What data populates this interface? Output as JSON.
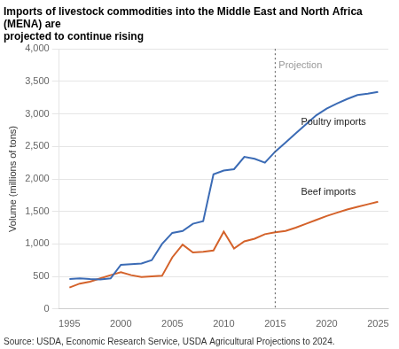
{
  "chart_data": {
    "type": "line",
    "title": [
      "Imports of livestock commodities into the Middle East and North Africa (MENA) are",
      "projected to continue rising"
    ],
    "ylabel": "Volume (millions of tons)",
    "source": "Source: USDA, Economic Research Service, USDA Agricultural Projections to 2024.",
    "x": [
      1995,
      1996,
      1997,
      1998,
      1999,
      2000,
      2001,
      2002,
      2003,
      2004,
      2005,
      2006,
      2007,
      2008,
      2009,
      2010,
      2011,
      2012,
      2013,
      2014,
      2015,
      2016,
      2017,
      2018,
      2019,
      2020,
      2021,
      2022,
      2023,
      2024,
      2025
    ],
    "series": [
      {
        "name": "Poultry imports",
        "color": "#3b6bb5",
        "values": [
          460,
          470,
          460,
          455,
          470,
          680,
          690,
          700,
          750,
          1000,
          1170,
          1200,
          1310,
          1350,
          2070,
          2130,
          2150,
          2340,
          2310,
          2250,
          2420,
          2560,
          2700,
          2840,
          2980,
          3080,
          3160,
          3230,
          3290,
          3310,
          3340
        ]
      },
      {
        "name": "Beef imports",
        "color": "#d4622a",
        "values": [
          330,
          390,
          420,
          470,
          520,
          565,
          520,
          490,
          500,
          510,
          795,
          990,
          870,
          880,
          900,
          1190,
          930,
          1040,
          1080,
          1150,
          1180,
          1200,
          1250,
          1310,
          1370,
          1430,
          1480,
          1530,
          1570,
          1610,
          1650
        ]
      }
    ],
    "xlim": [
      1994,
      2026
    ],
    "xticks": [
      1995,
      2000,
      2005,
      2010,
      2015,
      2020,
      2025
    ],
    "ylim": [
      0,
      4000
    ],
    "yticks": [
      0,
      500,
      {
        "value": 1000,
        "label": "1,000"
      },
      {
        "value": 1500,
        "label": "1,500"
      },
      {
        "value": 2000,
        "label": "2,000"
      },
      {
        "value": 2500,
        "label": "2,500"
      },
      {
        "value": 3000,
        "label": "3,000"
      },
      {
        "value": 3500,
        "label": "3,500"
      },
      {
        "value": 4000,
        "label": "4,000"
      }
    ],
    "grid": "y",
    "vline": {
      "x": 2015,
      "label": "Projection",
      "label_y": 3820
    },
    "annotations": [
      {
        "text": "Poultry imports",
        "x": 2017.5,
        "y": 2950
      },
      {
        "text": "Beef imports",
        "x": 2017.5,
        "y": 1870
      }
    ]
  }
}
